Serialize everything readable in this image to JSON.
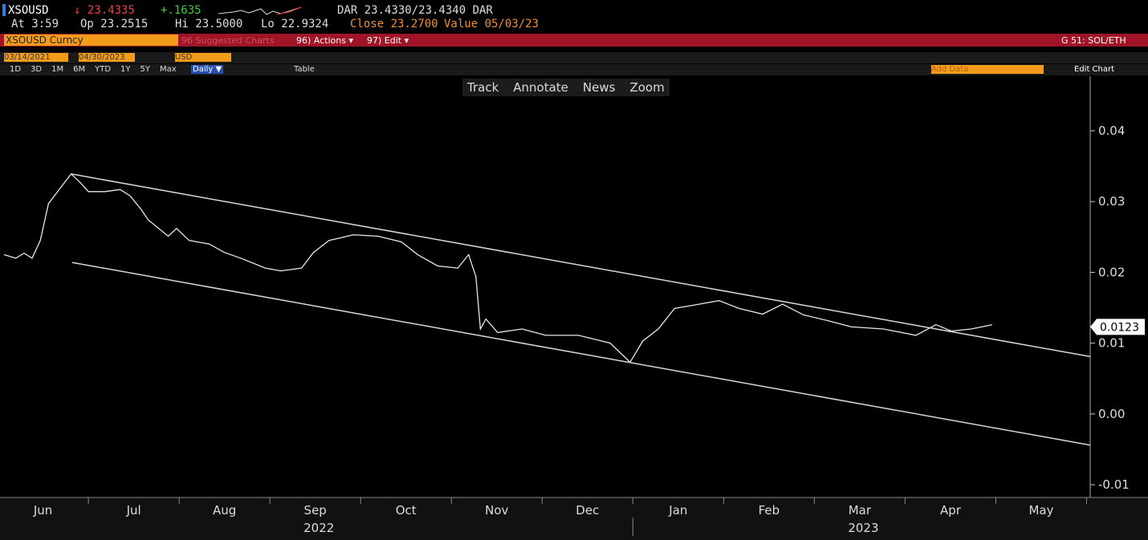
{
  "header": {
    "ticker": "XSOUSD",
    "last": "↓ 23.4335",
    "change": "+.1635",
    "bid_ask": "DAR 23.4330/23.4340 DAR",
    "time": "At 3:59",
    "open": "Op 23.2515",
    "high": "Hi 23.5000",
    "low": "Lo 22.9324",
    "close": "Close 23.2700",
    "value": "Value 05/03/23"
  },
  "menu": {
    "security": "XSOUSD Curncy",
    "suggested": "96 Suggested Charts",
    "actions": "96) Actions ▾",
    "edit": "97) Edit ▾",
    "function": "G 51: SOL/ETH"
  },
  "range": {
    "start": "03/14/2021",
    "end": "04/30/2023",
    "currency": "USD"
  },
  "periods": [
    "1D",
    "3D",
    "1M",
    "6M",
    "YTD",
    "1Y",
    "5Y",
    "Max"
  ],
  "frequency": "Daily ▼",
  "table": "Table",
  "add_data": "Add Data",
  "edit_chart": "Edit Chart",
  "chart_tools": [
    "Track",
    "Annotate",
    "News",
    "Zoom"
  ],
  "chart_data": {
    "type": "line",
    "color": "#e8e8e8",
    "xlim": [
      0.07,
      12.04
    ],
    "ylim": [
      -0.0118,
      0.0477
    ],
    "xticks": [
      {
        "value": 0.5,
        "label": "Jun"
      },
      {
        "value": 1.5,
        "label": "Jul"
      },
      {
        "value": 2.5,
        "label": "Aug"
      },
      {
        "value": 3.5,
        "label": "Sep"
      },
      {
        "value": 4.5,
        "label": "Oct"
      },
      {
        "value": 5.5,
        "label": "Nov"
      },
      {
        "value": 6.5,
        "label": "Dec"
      },
      {
        "value": 7.5,
        "label": "Jan"
      },
      {
        "value": 8.5,
        "label": "Feb"
      },
      {
        "value": 9.5,
        "label": "Mar"
      },
      {
        "value": 10.5,
        "label": "Apr"
      },
      {
        "value": 11.5,
        "label": "May"
      }
    ],
    "years": [
      {
        "value": 3.54,
        "label": "2022"
      },
      {
        "value": 9.54,
        "label": "2023"
      }
    ],
    "yticks": [
      0.04,
      0.03,
      0.02,
      0.01,
      {
        "value": 0,
        "label": "0.00"
      },
      -0.01
    ],
    "last_value": 0.0123,
    "series": [
      {
        "color": "#e8e8e8",
        "x": [
          0.07,
          0.2,
          0.29,
          0.38,
          0.47,
          0.56,
          0.69,
          0.81,
          0.91,
          1.0,
          1.18,
          1.35,
          1.46,
          1.58,
          1.66,
          1.88,
          1.97,
          2.11,
          2.33,
          2.5,
          2.68,
          2.95,
          3.12,
          3.35,
          3.48,
          3.65,
          3.92,
          4.19,
          4.45,
          4.63,
          4.85,
          5.07,
          5.19,
          5.27,
          5.32,
          5.38,
          5.51,
          5.78,
          6.04,
          6.4,
          6.75,
          6.97,
          7.11,
          7.28,
          7.46,
          7.73,
          7.95,
          8.17,
          8.43,
          8.65,
          8.88,
          9.14,
          9.41,
          9.76,
          10.12,
          10.34,
          10.51,
          10.73,
          10.96
        ],
        "values": [
          0.0225,
          0.022,
          0.0227,
          0.022,
          0.0245,
          0.0297,
          0.0319,
          0.0339,
          0.0327,
          0.0314,
          0.0314,
          0.0317,
          0.0308,
          0.0289,
          0.0274,
          0.0251,
          0.0262,
          0.0245,
          0.024,
          0.0228,
          0.022,
          0.0206,
          0.0202,
          0.0206,
          0.0228,
          0.0245,
          0.0253,
          0.0251,
          0.0243,
          0.0225,
          0.0209,
          0.0206,
          0.0225,
          0.0194,
          0.012,
          0.0134,
          0.0115,
          0.012,
          0.0111,
          0.0111,
          0.01,
          0.0073,
          0.0103,
          0.012,
          0.0149,
          0.0155,
          0.016,
          0.0149,
          0.0141,
          0.0155,
          0.014,
          0.0132,
          0.0123,
          0.012,
          0.0111,
          0.0126,
          0.0117,
          0.012,
          0.0126
        ]
      },
      {
        "color": "#d8d8d8",
        "x": [
          0.81,
          12.04
        ],
        "values": [
          0.0339,
          0.0081
        ]
      },
      {
        "color": "#d8d8d8",
        "x": [
          0.82,
          12.04
        ],
        "values": [
          0.0214,
          -0.0044
        ]
      }
    ]
  }
}
